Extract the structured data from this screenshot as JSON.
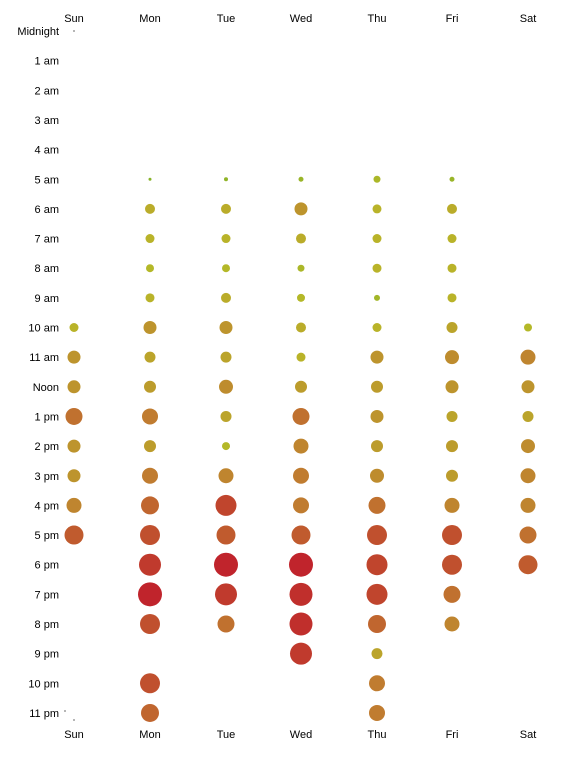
{
  "chart_data": {
    "type": "scatter",
    "days": [
      "Sun",
      "Mon",
      "Tue",
      "Wed",
      "Thu",
      "Fri",
      "Sat"
    ],
    "hours": [
      "Midnight",
      "1 am",
      "2 am",
      "3 am",
      "4 am",
      "5 am",
      "6 am",
      "7 am",
      "8 am",
      "9 am",
      "10 am",
      "11 am",
      "Noon",
      "1 pm",
      "2 pm",
      "3 pm",
      "4 pm",
      "5 pm",
      "6 pm",
      "7 pm",
      "8 pm",
      "9 pm",
      "10 pm",
      "11 pm"
    ],
    "values": [
      [
        0,
        0,
        0,
        0,
        0,
        0,
        0,
        0,
        0,
        0,
        9,
        13,
        13,
        17,
        13,
        13,
        15,
        19,
        0,
        0,
        0,
        0,
        0,
        0
      ],
      [
        0,
        0,
        0,
        0,
        0,
        3,
        10,
        9,
        8,
        9,
        13,
        11,
        12,
        16,
        12,
        16,
        18,
        20,
        22,
        24,
        20,
        0,
        20,
        18
      ],
      [
        0,
        0,
        0,
        0,
        0,
        4,
        10,
        9,
        8,
        10,
        13,
        11,
        14,
        11,
        8,
        15,
        21,
        19,
        24,
        22,
        17,
        0,
        0,
        0
      ],
      [
        0,
        0,
        0,
        0,
        0,
        5,
        13,
        10,
        7,
        8,
        10,
        9,
        12,
        17,
        15,
        16,
        16,
        19,
        24,
        23,
        23,
        22,
        0,
        0
      ],
      [
        0,
        0,
        0,
        0,
        0,
        7,
        9,
        9,
        9,
        6,
        9,
        13,
        12,
        13,
        12,
        14,
        17,
        20,
        21,
        21,
        18,
        11,
        16,
        16
      ],
      [
        0,
        0,
        0,
        0,
        0,
        5,
        10,
        9,
        9,
        9,
        11,
        14,
        13,
        11,
        12,
        12,
        15,
        20,
        20,
        17,
        15,
        0,
        0,
        0
      ],
      [
        0,
        0,
        0,
        0,
        0,
        0,
        0,
        0,
        0,
        0,
        8,
        15,
        13,
        11,
        14,
        15,
        15,
        17,
        19,
        0,
        0,
        0,
        0,
        0
      ]
    ]
  }
}
